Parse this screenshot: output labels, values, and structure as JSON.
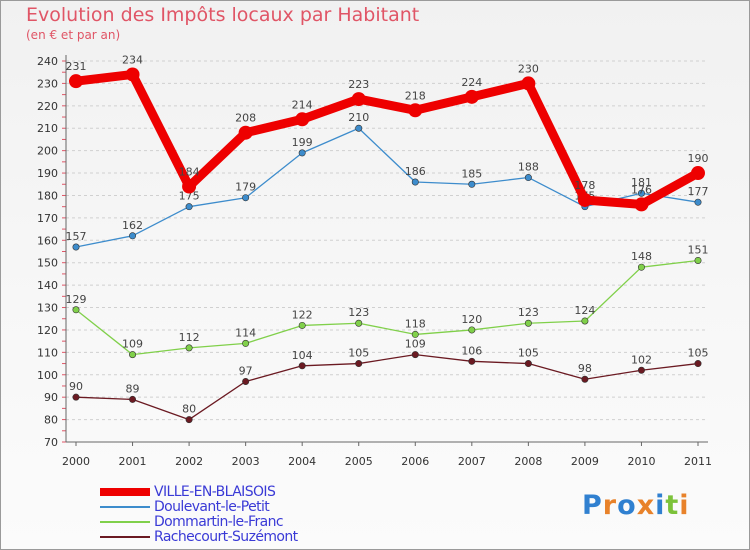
{
  "chart_data": {
    "type": "line",
    "title": "Evolution des Impôts locaux par Habitant",
    "subtitle": "(en € et par an)",
    "categories": [
      "2000",
      "2001",
      "2002",
      "2003",
      "2004",
      "2005",
      "2006",
      "2007",
      "2008",
      "2009",
      "2010",
      "2011"
    ],
    "ylim": [
      70,
      240
    ],
    "yticks": [
      70,
      80,
      90,
      100,
      110,
      120,
      130,
      140,
      150,
      160,
      170,
      180,
      190,
      200,
      210,
      220,
      230,
      240
    ],
    "grid": "horizontal dashed",
    "legend_position": "bottom-left",
    "series": [
      {
        "name": "VILLE-EN-BLAISOIS",
        "color": "#ee0000",
        "values": [
          231,
          234,
          184,
          208,
          214,
          223,
          218,
          224,
          230,
          178,
          176,
          190
        ],
        "labels": [
          "231",
          "234",
          "184",
          "208",
          "214",
          "223",
          "218",
          "224",
          "230",
          "178",
          "176",
          "190"
        ],
        "emphasis": "thick"
      },
      {
        "name": "Doulevant-le-Petit",
        "color": "#3d8ccc",
        "values": [
          157,
          162,
          175,
          179,
          199,
          210,
          186,
          185,
          188,
          175,
          181,
          177
        ],
        "labels": [
          "157",
          "162",
          "175",
          "179",
          "199",
          "210",
          "186",
          "185",
          "188",
          "175",
          "181",
          "177"
        ],
        "emphasis": "thin"
      },
      {
        "name": "Dommartin-le-Franc",
        "color": "#80d04a",
        "values": [
          129,
          109,
          112,
          114,
          122,
          123,
          118,
          120,
          123,
          124,
          148,
          151
        ],
        "labels": [
          "129",
          "109",
          "112",
          "114",
          "122",
          "123",
          "118",
          "120",
          "123",
          "124",
          "148",
          "151"
        ],
        "emphasis": "thin"
      },
      {
        "name": "Rachecourt-Suzémont",
        "color": "#6b1a22",
        "values": [
          90,
          89,
          80,
          97,
          104,
          105,
          109,
          106,
          105,
          98,
          102,
          105
        ],
        "labels": [
          "90",
          "89",
          "80",
          "97",
          "104",
          "105",
          "109",
          "106",
          "105",
          "98",
          "102",
          "105"
        ],
        "emphasis": "thin"
      }
    ]
  },
  "branding": {
    "logo_text": "Proxiti",
    "logo_letter_colors": [
      "#3080d0",
      "#e8822a",
      "#3080d0",
      "#e8822a",
      "#3080d0",
      "#7cc23a",
      "#e8822a"
    ]
  }
}
